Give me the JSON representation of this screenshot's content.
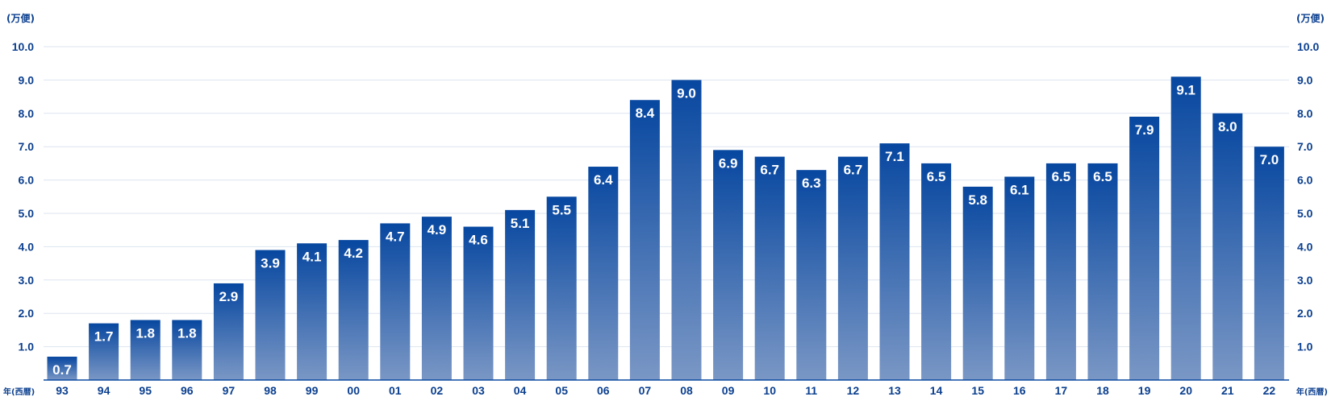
{
  "chart_data": {
    "type": "bar",
    "title": "",
    "ylabel_left": "(万便)",
    "ylabel_right": "(万便)",
    "xlabel_left": "年(西暦)",
    "xlabel_right": "年(西暦)",
    "ylim": [
      0,
      10
    ],
    "yticks": [
      "1.0",
      "2.0",
      "3.0",
      "4.0",
      "5.0",
      "6.0",
      "7.0",
      "8.0",
      "9.0",
      "10.0"
    ],
    "grid": true,
    "legend": "none",
    "categories": [
      "93",
      "94",
      "95",
      "96",
      "97",
      "98",
      "99",
      "00",
      "01",
      "02",
      "03",
      "04",
      "05",
      "06",
      "07",
      "08",
      "09",
      "10",
      "11",
      "12",
      "13",
      "14",
      "15",
      "16",
      "17",
      "18",
      "19",
      "20",
      "21",
      "22"
    ],
    "values": [
      0.7,
      1.7,
      1.8,
      1.8,
      2.9,
      3.9,
      4.1,
      4.2,
      4.7,
      4.9,
      4.6,
      5.1,
      5.5,
      6.4,
      8.4,
      9.0,
      6.9,
      6.7,
      6.3,
      6.7,
      7.1,
      6.5,
      5.8,
      6.1,
      6.5,
      6.5,
      7.9,
      9.1,
      8.0,
      7.0
    ],
    "data_labels": [
      "0.7",
      "1.7",
      "1.8",
      "1.8",
      "2.9",
      "3.9",
      "4.1",
      "4.2",
      "4.7",
      "4.9",
      "4.6",
      "5.1",
      "5.5",
      "6.4",
      "8.4",
      "9.0",
      "6.9",
      "6.7",
      "6.3",
      "6.7",
      "7.1",
      "6.5",
      "5.8",
      "6.1",
      "6.5",
      "6.5",
      "7.9",
      "9.1",
      "8.0",
      "7.0"
    ],
    "colors": {
      "bar_top": "#0747a0",
      "bar_bottom": "#7a97c5",
      "text": "#0b3f8f",
      "grid": "#dde4ef",
      "axis": "#0b4aa2"
    }
  }
}
